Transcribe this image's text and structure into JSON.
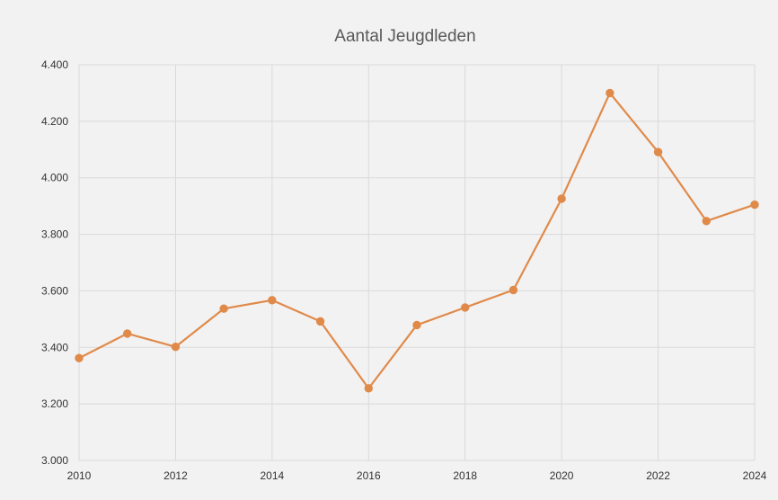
{
  "chart_data": {
    "type": "line",
    "title": "Aantal Jeugdleden",
    "xlabel": "",
    "ylabel": "",
    "x": [
      2010,
      2011,
      2012,
      2013,
      2014,
      2015,
      2016,
      2017,
      2018,
      2019,
      2020,
      2021,
      2022,
      2023,
      2024
    ],
    "series": [
      {
        "values": [
          3362,
          3449,
          3402,
          3537,
          3567,
          3492,
          3255,
          3479,
          3541,
          3603,
          3926,
          4300,
          4091,
          3847,
          3905
        ]
      }
    ],
    "xlim": [
      2010,
      2024
    ],
    "ylim": [
      3000,
      4400
    ],
    "x_ticks": [
      2010,
      2012,
      2014,
      2016,
      2018,
      2020,
      2022,
      2024
    ],
    "x_tick_labels": [
      "2010",
      "2012",
      "2014",
      "2016",
      "2018",
      "2020",
      "2022",
      "2024"
    ],
    "y_ticks": [
      3000,
      3200,
      3400,
      3600,
      3800,
      4000,
      4200,
      4400
    ],
    "y_tick_labels": [
      "3.000",
      "3.200",
      "3.400",
      "3.600",
      "3.800",
      "4.000",
      "4.200",
      "4.400"
    ],
    "grid": true,
    "legend": "none",
    "colors": {
      "series": "#e08a4a",
      "grid": "#d9d9d9",
      "background": "#f2f2f2",
      "title": "#595959",
      "tick": "#333333"
    }
  }
}
